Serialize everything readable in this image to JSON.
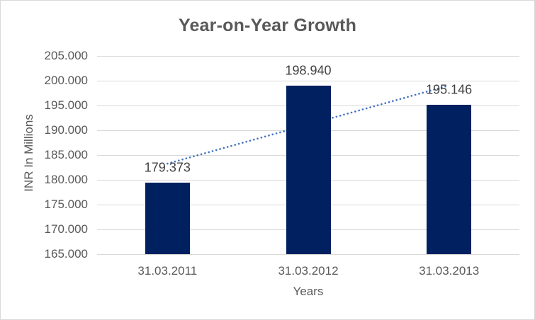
{
  "chart_data": {
    "type": "bar",
    "title": "Year-on-Year Growth",
    "xlabel": "Years",
    "ylabel": "INR In Millions",
    "categories": [
      "31.03.2011",
      "31.03.2012",
      "31.03.2013"
    ],
    "values": [
      179.373,
      198.94,
      195.146
    ],
    "data_labels": [
      "179.373",
      "198.940",
      "195.146"
    ],
    "yticks": [
      "205.000",
      "200.000",
      "195.000",
      "190.000",
      "185.000",
      "180.000",
      "175.000",
      "170.000",
      "165.000"
    ],
    "ytick_values": [
      205,
      200,
      195,
      190,
      185,
      180,
      175,
      170,
      165
    ],
    "ylim": [
      165,
      205
    ],
    "grid": "horizontal-only",
    "legend": "none",
    "trendline": {
      "type": "linear",
      "style": "dotted",
      "color": "#4472C4"
    },
    "colors": {
      "bar": "#002060",
      "gridline": "#D9D9D9",
      "axis_line": "#D9D9D9",
      "title_text": "#595959",
      "tick_text": "#595959",
      "data_label_text": "#404040",
      "border": "#D9D9D9",
      "background": "#FFFFFF"
    }
  }
}
